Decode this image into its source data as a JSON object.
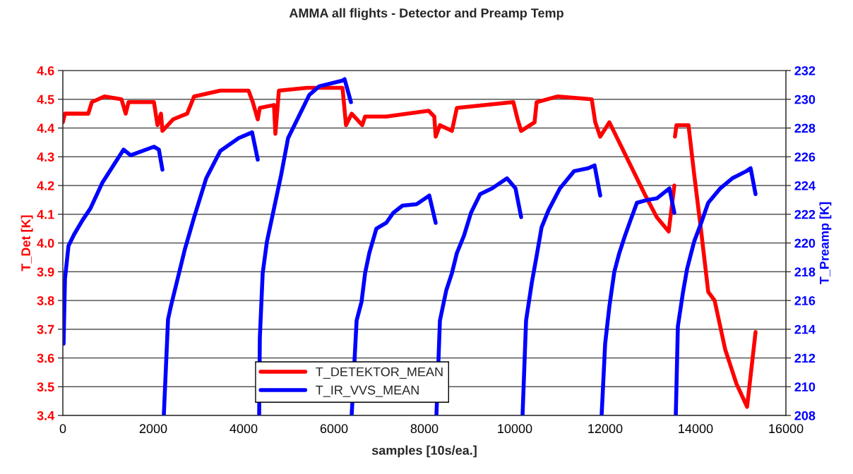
{
  "chart_data": {
    "type": "line",
    "title": "AMMA all flights - Detector and Preamp Temp",
    "xlabel": "samples [10s/ea.]",
    "ylabel": "T_Det [K]",
    "y2label": "T_Preamp [K]",
    "xlim": [
      0,
      16000
    ],
    "xticks": [
      0,
      2000,
      4000,
      6000,
      8000,
      10000,
      12000,
      14000,
      16000
    ],
    "ylim": [
      3.4,
      4.6
    ],
    "yticks": [
      3.4,
      3.5,
      3.6,
      3.7,
      3.8,
      3.9,
      {
        "value": 4,
        "label": "4.0"
      },
      4.1,
      4.2,
      4.3,
      4.4,
      4.5,
      4.6
    ],
    "y2lim": [
      208,
      232
    ],
    "y2ticks": [
      208,
      210,
      212,
      214,
      216,
      218,
      220,
      222,
      224,
      226,
      228,
      230,
      232
    ],
    "grid": "y",
    "legend": "bottom",
    "line_style": "solid",
    "marker": "none",
    "series": [
      {
        "name": "T_DETEKTOR_MEAN",
        "color": "#ff0000",
        "x": [
          0,
          47,
          563,
          641,
          922,
          1297,
          1391,
          1453,
          2016,
          2094,
          2172,
          2203,
          2438,
          2750,
          2906,
          3484,
          4109,
          4203,
          4313,
          4359,
          4672,
          4703,
          4781,
          5406,
          6188,
          6266,
          6391,
          6625,
          6688,
          7156,
          8094,
          8219,
          8250,
          8344,
          8609,
          8719,
          9969,
          10063,
          10141,
          10438,
          10484,
          10953,
          11703,
          11781,
          11891,
          12094,
          12469,
          12875,
          13141,
          13406,
          13531,
          13540,
          13545,
          13578,
          13844,
          13969,
          14125,
          14281,
          14422,
          14656,
          14906,
          15141,
          15328
        ],
        "values": [
          4.42,
          4.45,
          4.45,
          4.49,
          4.51,
          4.5,
          4.45,
          4.49,
          4.49,
          4.41,
          4.45,
          4.39,
          4.43,
          4.45,
          4.51,
          4.53,
          4.53,
          4.49,
          4.43,
          4.47,
          4.48,
          4.38,
          4.53,
          4.54,
          4.54,
          4.41,
          4.45,
          4.41,
          4.44,
          4.44,
          4.46,
          4.44,
          4.37,
          4.41,
          4.39,
          4.47,
          4.49,
          4.43,
          4.39,
          4.42,
          4.49,
          4.51,
          4.5,
          4.42,
          4.37,
          4.42,
          4.3,
          4.17,
          4.09,
          4.04,
          4.2,
          null,
          4.37,
          4.41,
          4.41,
          4.24,
          4.04,
          3.83,
          3.8,
          3.63,
          3.51,
          3.43,
          3.69
        ]
      },
      {
        "name": "T_IR_VVS_MEAN",
        "color": "#0000ff",
        "axis": "y2",
        "x": [
          16,
          47,
          125,
          250,
          438,
          609,
          875,
          1344,
          1500,
          2016,
          2125,
          2203,
          2215,
          2234,
          2328,
          2391,
          2703,
          2906,
          3172,
          3484,
          3891,
          4188,
          4313,
          4330,
          4344,
          4359,
          4422,
          4516,
          4672,
          4828,
          4984,
          5203,
          5453,
          5672,
          6188,
          6234,
          6375,
          6385,
          6391,
          6500,
          6609,
          6688,
          6781,
          6938,
          7156,
          7313,
          7516,
          7828,
          8109,
          8250,
          8258,
          8266,
          8344,
          8484,
          8609,
          8719,
          8875,
          9031,
          9234,
          9500,
          9828,
          10016,
          10141,
          10160,
          10172,
          10250,
          10375,
          10484,
          10594,
          10750,
          11000,
          11313,
          11625,
          11766,
          11891,
          11905,
          11922,
          12000,
          12094,
          12203,
          12313,
          12438,
          12563,
          12703,
          12938,
          13141,
          13422,
          13531,
          13547,
          13563,
          13609,
          13719,
          13813,
          13969,
          14125,
          14281,
          14547,
          14813,
          15125,
          15219,
          15328
        ],
        "values": [
          213.0,
          217.5,
          219.8,
          220.6,
          221.6,
          222.4,
          224.2,
          226.5,
          226.1,
          226.7,
          226.5,
          225.1,
          null,
          208,
          214.7,
          215.6,
          219.6,
          221.8,
          224.5,
          226.4,
          227.3,
          227.7,
          225.8,
          null,
          208,
          213.4,
          217.9,
          220.1,
          222.4,
          224.7,
          227.3,
          228.7,
          230.3,
          230.9,
          231.3,
          231.4,
          229.8,
          null,
          208,
          214.6,
          215.9,
          217.9,
          219.3,
          221.0,
          221.4,
          222.1,
          222.6,
          222.7,
          223.3,
          221.4,
          null,
          208,
          214.6,
          216.7,
          217.9,
          219.3,
          220.5,
          222.1,
          223.4,
          223.8,
          224.5,
          223.8,
          221.8,
          null,
          208,
          214.6,
          217.2,
          219.1,
          221.1,
          222.3,
          223.8,
          225.0,
          225.2,
          225.4,
          223.3,
          null,
          208,
          213.0,
          215.6,
          218.0,
          219.3,
          220.5,
          221.6,
          222.8,
          223.0,
          223.1,
          223.8,
          222.1,
          null,
          208,
          214.2,
          216.5,
          218.2,
          220.1,
          221.4,
          222.8,
          223.8,
          224.5,
          225.0,
          225.2,
          223.4
        ]
      }
    ]
  }
}
